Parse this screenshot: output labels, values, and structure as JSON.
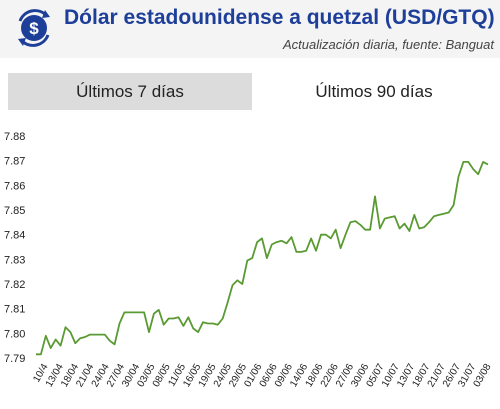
{
  "header": {
    "title": "Dólar estadounidense a quetzal (USD/GTQ)",
    "subtitle": "Actualización diaria, fuente: Banguat",
    "accent_color": "#1e3f99",
    "icon": "currency-exchange-icon"
  },
  "tabs": [
    {
      "label": "Últimos 7 días",
      "active": false
    },
    {
      "label": "Últimos 90 días",
      "active": true
    }
  ],
  "chart_data": {
    "type": "line",
    "line_color": "#5a9a32",
    "grid": false,
    "ylim": [
      7.79,
      7.88
    ],
    "yticks": [
      "7.88",
      "7.87",
      "7.86",
      "7.85",
      "7.84",
      "7.83",
      "7.82",
      "7.81",
      "7.80",
      "7.79"
    ],
    "xticks": [
      "10/4",
      "13/04",
      "18/04",
      "21/04",
      "24/04",
      "27/04",
      "30/04",
      "03/05",
      "08/05",
      "11/05",
      "16/05",
      "19/05",
      "24/05",
      "29/05",
      "01/06",
      "06/06",
      "09/06",
      "14/06",
      "18/06",
      "22/06",
      "27/06",
      "30/06",
      "05/07",
      "10/07",
      "13/07",
      "18/07",
      "21/07",
      "26/07",
      "31/07",
      "03/08"
    ],
    "values": [
      7.7915,
      7.7915,
      7.799,
      7.794,
      7.7975,
      7.795,
      7.8025,
      7.8005,
      7.796,
      7.798,
      7.7985,
      7.7995,
      7.7995,
      7.7995,
      7.7995,
      7.797,
      7.7955,
      7.804,
      7.8085,
      7.8085,
      7.8085,
      7.8085,
      7.8085,
      7.8005,
      7.808,
      7.8095,
      7.8035,
      7.806,
      7.806,
      7.8065,
      7.803,
      7.8065,
      7.802,
      7.8005,
      7.8045,
      7.804,
      7.804,
      7.8035,
      7.806,
      7.8125,
      7.8195,
      7.8215,
      7.82,
      7.8295,
      7.8305,
      7.837,
      7.8385,
      7.8305,
      7.836,
      7.837,
      7.8375,
      7.8365,
      7.839,
      7.833,
      7.833,
      7.8335,
      7.8385,
      7.8335,
      7.84,
      7.84,
      7.8385,
      7.842,
      7.8345,
      7.84,
      7.845,
      7.8455,
      7.844,
      7.842,
      7.842,
      7.8555,
      7.8425,
      7.8465,
      7.847,
      7.8475,
      7.8425,
      7.8445,
      7.8415,
      7.848,
      7.8425,
      7.843,
      7.845,
      7.8475,
      7.848,
      7.8485,
      7.849,
      7.852,
      7.8635,
      7.8695,
      7.8695,
      7.8665,
      7.8645,
      7.8695,
      7.8685
    ]
  }
}
